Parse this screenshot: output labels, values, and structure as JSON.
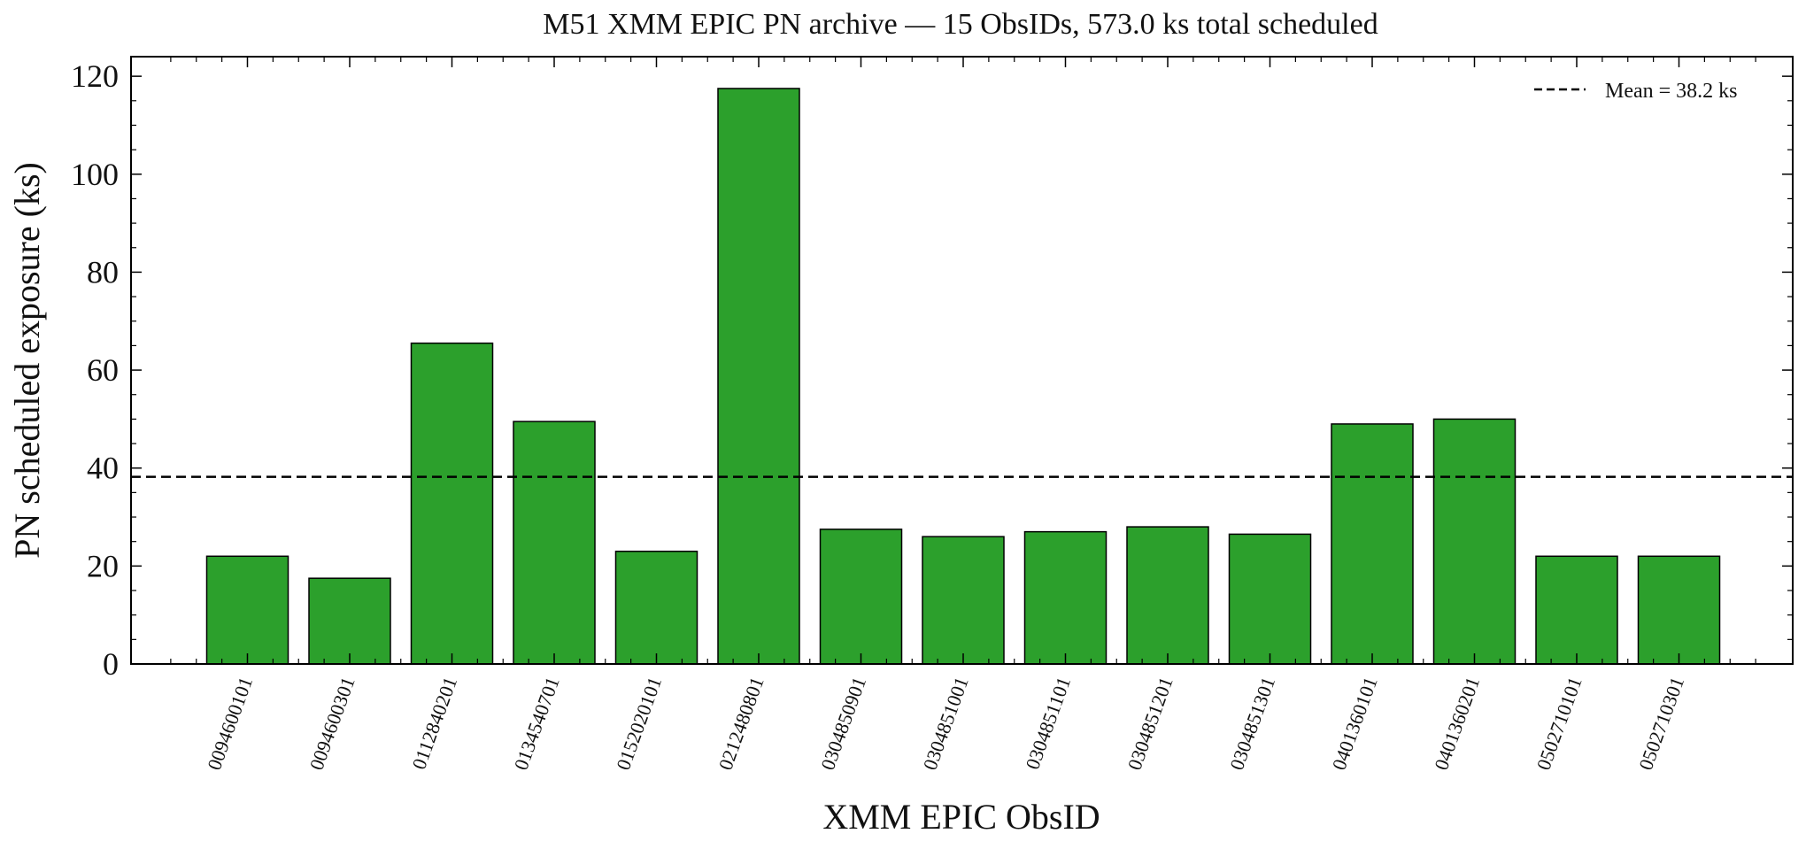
{
  "chart_data": {
    "type": "bar",
    "title": "M51 XMM EPIC PN archive — 15 ObsIDs, 573.0 ks total scheduled",
    "xlabel": "XMM EPIC ObsID",
    "ylabel": "PN scheduled exposure (ks)",
    "ylim": [
      0,
      124
    ],
    "yticks": [
      0,
      20,
      40,
      60,
      80,
      100,
      120
    ],
    "categories": [
      "0094600101",
      "0094600301",
      "0112840201",
      "0134540701",
      "0152020101",
      "0212480801",
      "0304850901",
      "0304851001",
      "0304851101",
      "0304851201",
      "0304851301",
      "0401360101",
      "0401360201",
      "0502710101",
      "0502710301"
    ],
    "values": [
      22.0,
      17.5,
      65.5,
      49.5,
      23.0,
      117.5,
      27.5,
      26.0,
      27.0,
      28.0,
      26.5,
      49.0,
      50.0,
      22.0,
      22.0
    ],
    "bar_color": "#2ca02c",
    "mean": {
      "value": 38.2,
      "label": "Mean = 38.2 ks"
    },
    "legend": "top-right",
    "grid": false
  }
}
